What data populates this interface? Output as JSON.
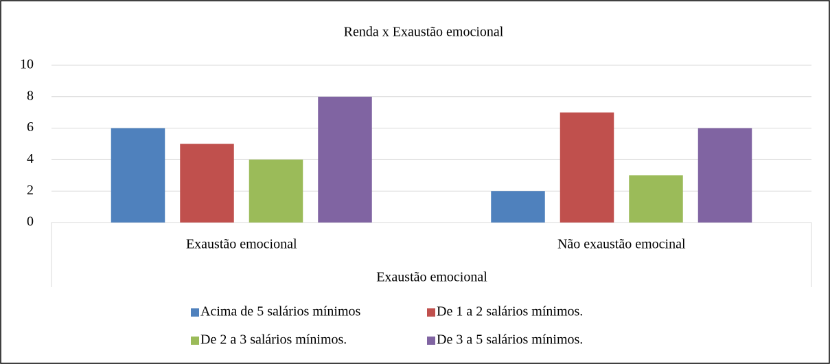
{
  "chart_data": {
    "type": "bar",
    "title": "Renda x Exaustão emocional",
    "x_label": "Exaustão emocional",
    "categories": [
      "Exaustão emocional",
      "Não exaustão emocinal"
    ],
    "series": [
      {
        "name": "Acima de 5 salários mínimos",
        "color": "#4f81bd",
        "values": [
          6,
          2
        ]
      },
      {
        "name": "De 1 a 2 salários mínimos.",
        "color": "#c0504d",
        "values": [
          5,
          7
        ]
      },
      {
        "name": "De 2 a 3 salários mínimos.",
        "color": "#9bbb59",
        "values": [
          4,
          3
        ]
      },
      {
        "name": "De 3 a 5 salários mínimos.",
        "color": "#8064a2",
        "values": [
          8,
          6
        ]
      }
    ],
    "ylim": [
      0,
      10
    ],
    "yticks": [
      0,
      2,
      4,
      6,
      8,
      10
    ],
    "grid": true,
    "legend": "bottom"
  }
}
